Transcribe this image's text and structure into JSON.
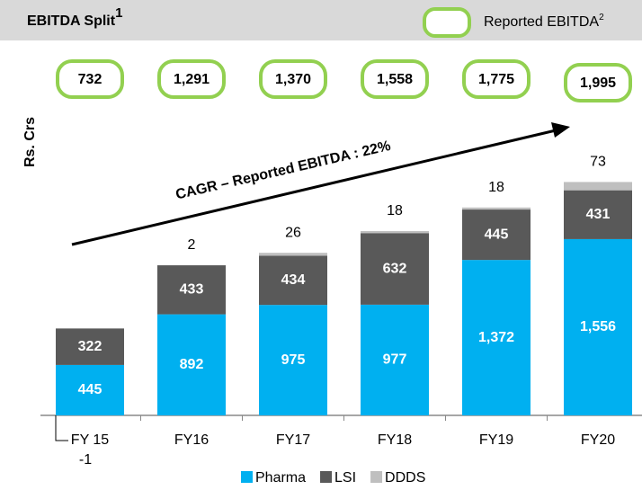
{
  "chart_data": {
    "type": "bar",
    "stacked": true,
    "title": "EBITDA Split",
    "title_note": "1",
    "y_label": "Rs. Crs",
    "annotation": "CAGR – Reported EBITDA : 22%",
    "categories": [
      "FY 15",
      "FY16",
      "FY17",
      "FY18",
      "FY19",
      "FY20"
    ],
    "series": [
      {
        "name": "Pharma",
        "color": "#00b0f0",
        "values": [
          445,
          892,
          975,
          977,
          1372,
          1556
        ],
        "value_labels": [
          "445",
          "892",
          "975",
          "977",
          "1,372",
          "1,556"
        ]
      },
      {
        "name": "LSI",
        "color": "#595959",
        "values": [
          322,
          433,
          434,
          632,
          445,
          431
        ]
      },
      {
        "name": "DDDS",
        "color": "#bfbfbf",
        "values": [
          -1,
          2,
          26,
          18,
          18,
          73
        ]
      }
    ],
    "reported_ebitda": {
      "name": "Reported EBITDA",
      "name_note": "2",
      "color": "#92d050",
      "values": [
        732,
        1291,
        1370,
        1558,
        1775,
        1995
      ],
      "value_labels": [
        "732",
        "1,291",
        "1,370",
        "1,558",
        "1,775",
        "1,995"
      ]
    },
    "ylim": [
      0,
      2600
    ]
  }
}
